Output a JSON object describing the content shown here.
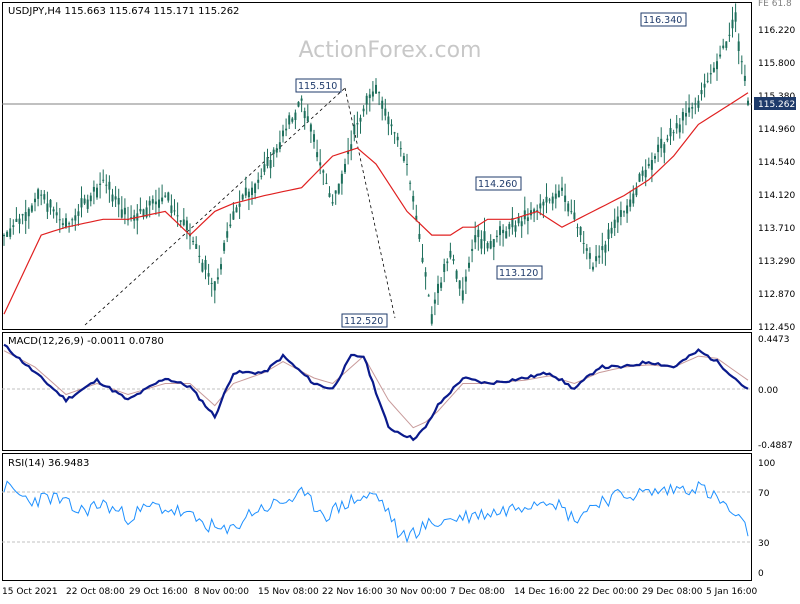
{
  "watermark": "ActionForex.com",
  "price_pane": {
    "header": "USDJPY,H4  115.663 115.674 115.171 115.262",
    "y_ticks": [
      "116.220",
      "115.800",
      "115.380",
      "114.960",
      "114.540",
      "114.120",
      "113.710",
      "113.290",
      "112.870",
      "112.450"
    ],
    "current_price_label": "115.262",
    "corner_label": "FE 61.8",
    "annotations": [
      "116.340",
      "115.510",
      "114.260",
      "113.120",
      "112.520"
    ]
  },
  "macd_pane": {
    "header": "MACD(12,26,9) -0.0011 0.0780",
    "y_ticks": [
      "0.4473",
      "0.00",
      "-0.4887"
    ]
  },
  "rsi_pane": {
    "header": "RSI(14) 36.9483",
    "y_ticks": [
      "100",
      "70",
      "30",
      "0"
    ]
  },
  "x_labels": [
    "15 Oct 2021",
    "22 Oct 08:00",
    "29 Oct 16:00",
    "8 Nov 00:00",
    "15 Nov 08:00",
    "22 Nov 16:00",
    "30 Nov 00:00",
    "7 Dec 08:00",
    "14 Dec 16:00",
    "22 Dec 00:00",
    "29 Dec 08:00",
    "5 Jan 16:00"
  ],
  "colors": {
    "candles": "#1e6f5c",
    "ma_line": "#e02020",
    "macd_line": "#0a1a8c",
    "signal_line": "#c89a9a",
    "rsi_line": "#1e90ff",
    "grid": "#c0c0c0",
    "price_box": "#1f3b6b"
  },
  "chart_data": [
    {
      "type": "line",
      "title": "USDJPY,H4  115.663 115.674 115.171 115.262",
      "ylim": [
        112.45,
        116.38
      ],
      "x_range": [
        "15 Oct 2021",
        "10 Jan 2022"
      ],
      "series": [
        {
          "name": "USDJPY",
          "x": [
            0,
            6,
            10,
            16,
            20,
            26,
            30,
            34,
            37,
            42,
            48,
            53,
            57,
            60,
            65,
            69,
            72,
            74,
            76,
            78,
            82,
            86,
            90,
            95,
            100,
            104,
            108,
            112,
            118,
            120
          ],
          "values": [
            113.6,
            114.1,
            113.7,
            114.3,
            113.8,
            114.1,
            113.6,
            112.9,
            113.9,
            114.4,
            115.3,
            114.0,
            115.0,
            115.5,
            114.5,
            112.6,
            113.4,
            112.9,
            113.6,
            113.5,
            113.7,
            113.9,
            114.2,
            113.2,
            113.9,
            114.5,
            114.9,
            115.3,
            116.3,
            115.3
          ]
        },
        {
          "name": "MA",
          "x": [
            0,
            6,
            10,
            16,
            20,
            26,
            30,
            34,
            37,
            42,
            48,
            53,
            57,
            60,
            65,
            69,
            72,
            74,
            76,
            78,
            82,
            86,
            90,
            95,
            100,
            104,
            108,
            112,
            118,
            120
          ],
          "values": [
            112.6,
            113.6,
            113.7,
            113.8,
            113.8,
            113.9,
            113.6,
            113.9,
            114.0,
            114.1,
            114.2,
            114.6,
            114.7,
            114.5,
            113.9,
            113.6,
            113.6,
            113.7,
            113.7,
            113.8,
            113.8,
            113.9,
            113.7,
            113.9,
            114.1,
            114.3,
            114.6,
            115.0,
            115.3,
            115.4
          ]
        }
      ],
      "annotations": [
        {
          "label": "116.340",
          "x": 112,
          "y": 116.34
        },
        {
          "label": "115.510",
          "x": 52,
          "y": 115.51
        },
        {
          "label": "114.260",
          "x": 83,
          "y": 114.26
        },
        {
          "label": "113.120",
          "x": 84,
          "y": 113.12
        },
        {
          "label": "112.520",
          "x": 63,
          "y": 112.52
        }
      ]
    },
    {
      "type": "line",
      "title": "MACD(12,26,9) -0.0011 0.0780",
      "ylim": [
        -0.4887,
        0.4473
      ],
      "series": [
        {
          "name": "MACD",
          "x": [
            0,
            5,
            10,
            15,
            20,
            26,
            30,
            34,
            37,
            42,
            45,
            50,
            53,
            56,
            58,
            62,
            66,
            68,
            70,
            74,
            78,
            84,
            88,
            92,
            96,
            100,
            104,
            108,
            112,
            115,
            120
          ],
          "values": [
            0.4,
            0.15,
            -0.1,
            0.08,
            -0.1,
            0.1,
            0.02,
            -0.25,
            0.15,
            0.15,
            0.3,
            0.05,
            0.0,
            0.3,
            0.3,
            -0.35,
            -0.45,
            -0.35,
            -0.15,
            0.1,
            0.05,
            0.1,
            0.15,
            0.0,
            0.2,
            0.2,
            0.25,
            0.2,
            0.35,
            0.25,
            -0.01
          ]
        },
        {
          "name": "Signal",
          "x": [
            0,
            5,
            10,
            15,
            20,
            26,
            30,
            34,
            37,
            42,
            45,
            50,
            53,
            56,
            58,
            62,
            66,
            68,
            70,
            74,
            78,
            84,
            88,
            92,
            96,
            100,
            104,
            108,
            112,
            115,
            120
          ],
          "values": [
            0.35,
            0.2,
            -0.05,
            0.05,
            -0.05,
            0.05,
            0.05,
            -0.15,
            0.05,
            0.15,
            0.25,
            0.1,
            0.05,
            0.2,
            0.3,
            -0.1,
            -0.35,
            -0.3,
            -0.2,
            0.05,
            0.05,
            0.08,
            0.12,
            0.05,
            0.15,
            0.2,
            0.22,
            0.2,
            0.3,
            0.28,
            0.08
          ]
        }
      ]
    },
    {
      "type": "line",
      "title": "RSI(14) 36.9483",
      "ylim": [
        0,
        100
      ],
      "series": [
        {
          "name": "RSI",
          "x": [
            0,
            4,
            8,
            12,
            16,
            20,
            24,
            28,
            32,
            36,
            40,
            44,
            48,
            52,
            56,
            60,
            62,
            64,
            68,
            72,
            76,
            80,
            84,
            88,
            92,
            96,
            100,
            104,
            108,
            112,
            116,
            120
          ],
          "values": [
            78,
            65,
            68,
            55,
            62,
            50,
            60,
            55,
            45,
            35,
            55,
            62,
            70,
            52,
            65,
            70,
            55,
            30,
            42,
            48,
            52,
            55,
            62,
            68,
            48,
            65,
            70,
            72,
            75,
            78,
            62,
            37
          ]
        }
      ]
    }
  ]
}
